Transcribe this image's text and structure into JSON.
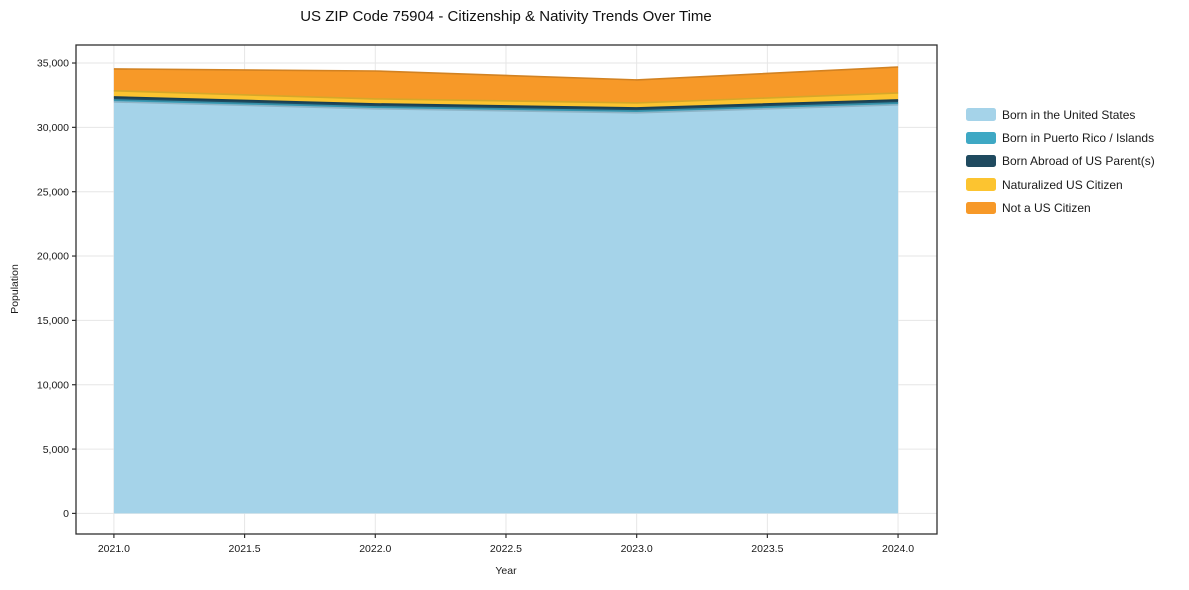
{
  "chart_data": {
    "type": "area",
    "stacked": true,
    "title": "US ZIP Code 75904 - Citizenship & Nativity Trends Over Time",
    "xlabel": "Year",
    "ylabel": "Population",
    "x": [
      2021,
      2022,
      2023,
      2024
    ],
    "series": [
      {
        "name": "Born in the United States",
        "color": "#A5D3E9",
        "values": [
          31980,
          31440,
          31130,
          31750
        ]
      },
      {
        "name": "Born in Puerto Rico / Islands",
        "color": "#3EA8C4",
        "values": [
          150,
          150,
          150,
          150
        ]
      },
      {
        "name": "Born Abroad of US Parent(s)",
        "color": "#1F4A5F",
        "values": [
          240,
          230,
          230,
          230
        ]
      },
      {
        "name": "Naturalized US Citizen",
        "color": "#FCC430",
        "values": [
          470,
          390,
          390,
          540
        ]
      },
      {
        "name": "Not a US Citizen",
        "color": "#F79928",
        "values": [
          1700,
          2170,
          1790,
          2020
        ]
      }
    ],
    "xticks": [
      2021.0,
      2021.5,
      2022.0,
      2022.5,
      2023.0,
      2023.5,
      2024.0
    ],
    "xtick_labels": [
      "2021.0",
      "2021.5",
      "2022.0",
      "2022.5",
      "2023.0",
      "2023.5",
      "2024.0"
    ],
    "yticks": [
      0,
      5000,
      10000,
      15000,
      20000,
      25000,
      30000,
      35000
    ],
    "ytick_labels": [
      "0",
      "5,000",
      "10,000",
      "15,000",
      "20,000",
      "25,000",
      "30,000",
      "35,000"
    ],
    "xlim": [
      2020.855,
      2024.149
    ],
    "ylim": [
      -1600,
      36400
    ],
    "grid": true,
    "grid_color": "#e6e6e6",
    "frame_color": "#2f2f2f",
    "legend_position": "right"
  }
}
